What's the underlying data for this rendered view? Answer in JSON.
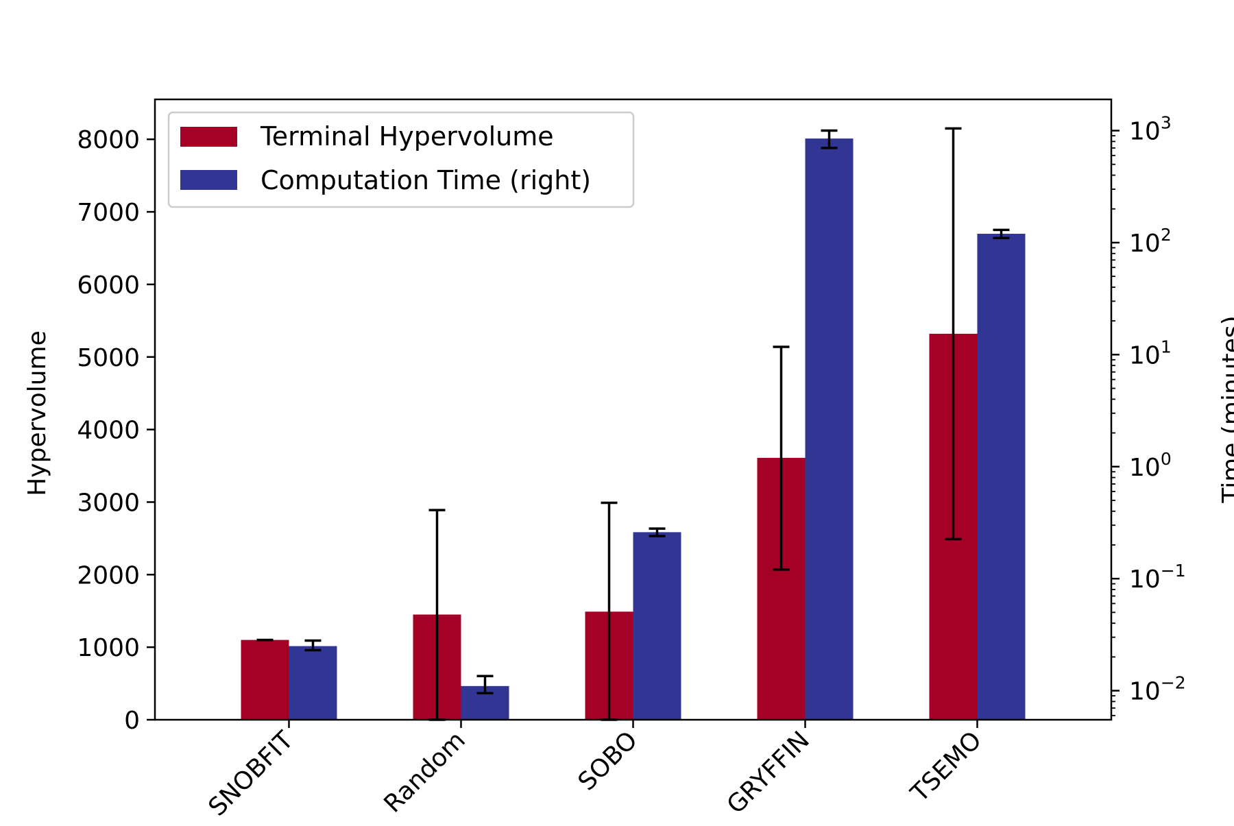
{
  "chart_data": {
    "type": "bar",
    "categories": [
      "SNOBFIT",
      "Random",
      "SOBO",
      "GRYFFIN",
      "TSEMO"
    ],
    "series": [
      {
        "name": "Terminal Hypervolume",
        "axis": "left",
        "color": "#a50026",
        "values": [
          1100,
          1450,
          1490,
          3610,
          5320
        ],
        "error_low": [
          1100,
          0,
          0,
          2070,
          2490
        ],
        "error_high": [
          1100,
          2890,
          2990,
          5140,
          8150
        ]
      },
      {
        "name": "Computation Time (right)",
        "axis": "right",
        "color": "#313695",
        "values": [
          0.025,
          0.011,
          0.26,
          850,
          120
        ],
        "error_low": [
          0.023,
          0.0095,
          0.24,
          700,
          110
        ],
        "error_high": [
          0.028,
          0.0135,
          0.28,
          1000,
          130
        ]
      }
    ],
    "ylabel": "Hypervolume",
    "ylim": [
      0,
      8550
    ],
    "yticks": [
      0,
      1000,
      2000,
      3000,
      4000,
      5000,
      6000,
      7000,
      8000
    ],
    "ylabel_right": "Time (minutes)",
    "y2scale": "log",
    "y2lim": [
      0.0055,
      1900
    ],
    "y2ticks": [
      {
        "base": "10",
        "exp": "−2",
        "value": 0.01
      },
      {
        "base": "10",
        "exp": "−1",
        "value": 0.1
      },
      {
        "base": "10",
        "exp": "0",
        "value": 1
      },
      {
        "base": "10",
        "exp": "1",
        "value": 10
      },
      {
        "base": "10",
        "exp": "2",
        "value": 100
      },
      {
        "base": "10",
        "exp": "3",
        "value": 1000
      }
    ],
    "legend_position": "top-left",
    "grid": false,
    "error_bar_color": "#000000"
  }
}
